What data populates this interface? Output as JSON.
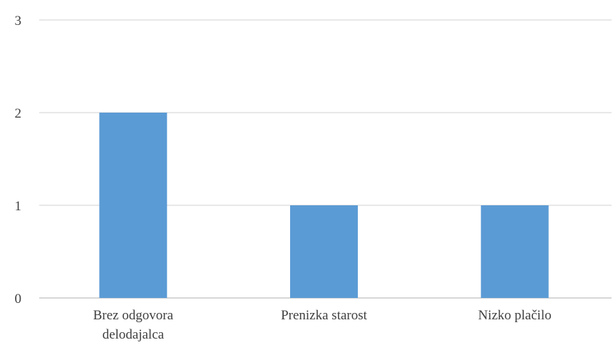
{
  "chart_data": {
    "type": "bar",
    "title": "",
    "xlabel": "",
    "ylabel": "",
    "categories": [
      [
        "Brez odgovora",
        "delodajalca"
      ],
      [
        "Prenizka starost"
      ],
      [
        "Nizko plačilo"
      ]
    ],
    "values": [
      2,
      1,
      1
    ],
    "ylim": [
      0,
      3
    ],
    "yticks": [
      "0",
      "1",
      "2",
      "3"
    ],
    "grid": true,
    "legend": "none",
    "bar_color": "#5b9bd5"
  }
}
